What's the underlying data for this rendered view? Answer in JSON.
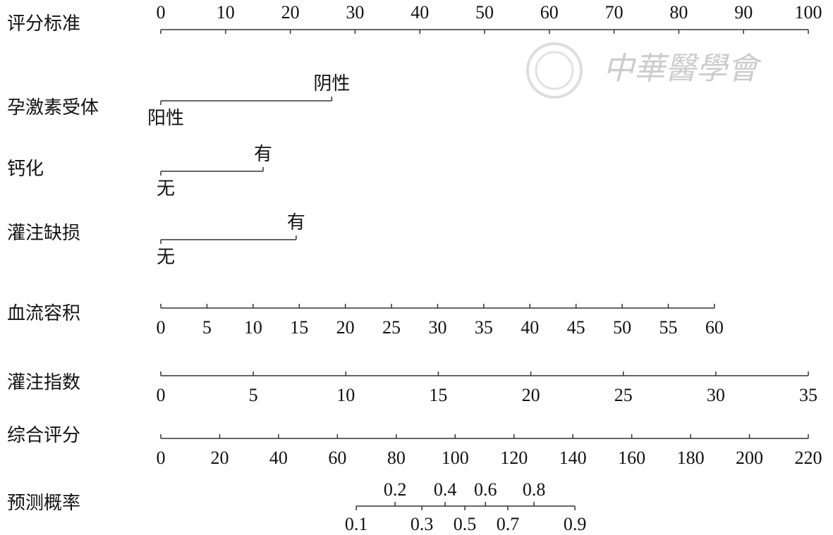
{
  "chart_data": {
    "type": "nomogram",
    "watermark": "中華醫學會",
    "rows": [
      {
        "label": "评分标准",
        "kind": "axis",
        "xlim": [
          0,
          100
        ],
        "points": [
          0,
          100
        ],
        "labels": "above",
        "ticks": [
          0,
          10,
          20,
          30,
          40,
          50,
          60,
          70,
          80,
          90,
          100
        ]
      },
      {
        "label": "孕激素受体",
        "kind": "categorical",
        "levels": [
          {
            "name": "阳性",
            "points": 0
          },
          {
            "name": "阴性",
            "points": 26.4
          }
        ]
      },
      {
        "label": "钙化",
        "kind": "categorical",
        "levels": [
          {
            "name": "无",
            "points": 0
          },
          {
            "name": "有",
            "points": 15.8
          }
        ]
      },
      {
        "label": "灌注缺损",
        "kind": "categorical",
        "levels": [
          {
            "name": "无",
            "points": 0
          },
          {
            "name": "有",
            "points": 20.9
          }
        ]
      },
      {
        "label": "血流容积",
        "kind": "axis",
        "xlim": [
          0,
          60
        ],
        "points": [
          0,
          85.5
        ],
        "labels": "below",
        "ticks": [
          0,
          5,
          10,
          15,
          20,
          25,
          30,
          35,
          40,
          45,
          50,
          55,
          60
        ]
      },
      {
        "label": "灌注指数",
        "kind": "axis",
        "xlim": [
          0,
          35
        ],
        "points": [
          0,
          100
        ],
        "labels": "below",
        "ticks": [
          0,
          5,
          10,
          15,
          20,
          25,
          30,
          35
        ]
      },
      {
        "label": "综合评分",
        "kind": "axis",
        "xlim": [
          0,
          220
        ],
        "points": [
          0,
          100
        ],
        "labels": "below",
        "ticks": [
          0,
          20,
          40,
          60,
          80,
          100,
          120,
          140,
          160,
          180,
          200,
          220
        ]
      },
      {
        "label": "预测概率",
        "kind": "probability",
        "ticks": [
          0.1,
          0.2,
          0.3,
          0.4,
          0.5,
          0.6,
          0.7,
          0.8,
          0.9
        ],
        "total_points": [
          66.4,
          79.6,
          88.7,
          96.6,
          103.3,
          110.3,
          117.9,
          126.8,
          140.7
        ]
      }
    ]
  }
}
